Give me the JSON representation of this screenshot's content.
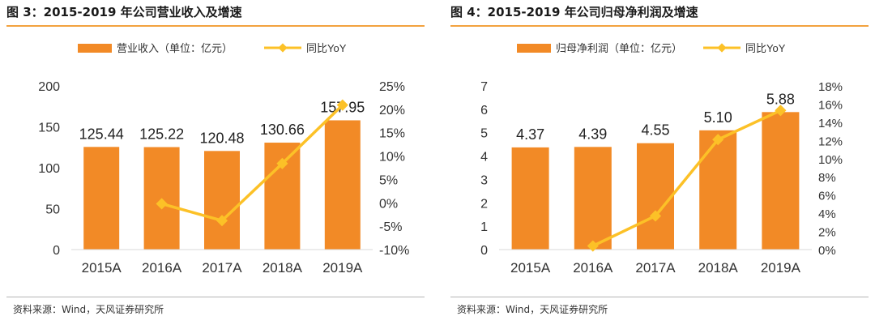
{
  "colors": {
    "bar": "#f28a26",
    "line": "#fcc127",
    "accent": "#f3a23f",
    "text": "#333333"
  },
  "charts": [
    {
      "title": "图 3：2015-2019 年公司营业收入及增速",
      "source": "资料来源：Wind，天风证券研究所"
    },
    {
      "title": "图 4：2015-2019 年公司归母净利润及增速",
      "source": "资料来源：Wind，天风证券研究所"
    }
  ],
  "chart_data": [
    {
      "type": "bar",
      "title": "",
      "categories": [
        "2015A",
        "2016A",
        "2017A",
        "2018A",
        "2019A"
      ],
      "series": [
        {
          "name": "营业收入（单位：亿元）",
          "type": "bar",
          "axis": "left",
          "values": [
            125.44,
            125.22,
            120.48,
            130.66,
            157.95
          ]
        },
        {
          "name": "同比YoY",
          "type": "line",
          "axis": "right",
          "values": [
            null,
            -0.2,
            -3.8,
            8.4,
            20.9
          ]
        }
      ],
      "data_labels": [
        "125.44",
        "125.22",
        "120.48",
        "130.66",
        "157.95"
      ],
      "ylim": [
        0,
        200
      ],
      "y_ticks": [
        0,
        50,
        100,
        150,
        200
      ],
      "y_tick_labels": [
        "0",
        "50",
        "100",
        "150",
        "200"
      ],
      "y2lim": [
        -10,
        25
      ],
      "y2_ticks": [
        -10,
        -5,
        0,
        5,
        10,
        15,
        20,
        25
      ],
      "y2_tick_labels": [
        "-10%",
        "-5%",
        "0%",
        "5%",
        "10%",
        "15%",
        "20%",
        "25%"
      ],
      "legend_position": "top-center",
      "grid": false
    },
    {
      "type": "bar",
      "title": "",
      "categories": [
        "2015A",
        "2016A",
        "2017A",
        "2018A",
        "2019A"
      ],
      "series": [
        {
          "name": "归母净利润（单位：亿元）",
          "type": "bar",
          "axis": "left",
          "values": [
            4.37,
            4.39,
            4.55,
            5.1,
            5.88
          ]
        },
        {
          "name": "同比YoY",
          "type": "line",
          "axis": "right",
          "values": [
            null,
            0.4,
            3.7,
            12.1,
            15.3
          ]
        }
      ],
      "data_labels": [
        "4.37",
        "4.39",
        "4.55",
        "5.10",
        "5.88"
      ],
      "ylim": [
        0,
        7
      ],
      "y_ticks": [
        0,
        1,
        2,
        3,
        4,
        5,
        6,
        7
      ],
      "y_tick_labels": [
        "0",
        "1",
        "2",
        "3",
        "4",
        "5",
        "6",
        "7"
      ],
      "y2lim": [
        0,
        18
      ],
      "y2_ticks": [
        0,
        2,
        4,
        6,
        8,
        10,
        12,
        14,
        16,
        18
      ],
      "y2_tick_labels": [
        "0%",
        "2%",
        "4%",
        "6%",
        "8%",
        "10%",
        "12%",
        "14%",
        "16%",
        "18%"
      ],
      "legend_position": "top-center",
      "grid": false
    }
  ]
}
